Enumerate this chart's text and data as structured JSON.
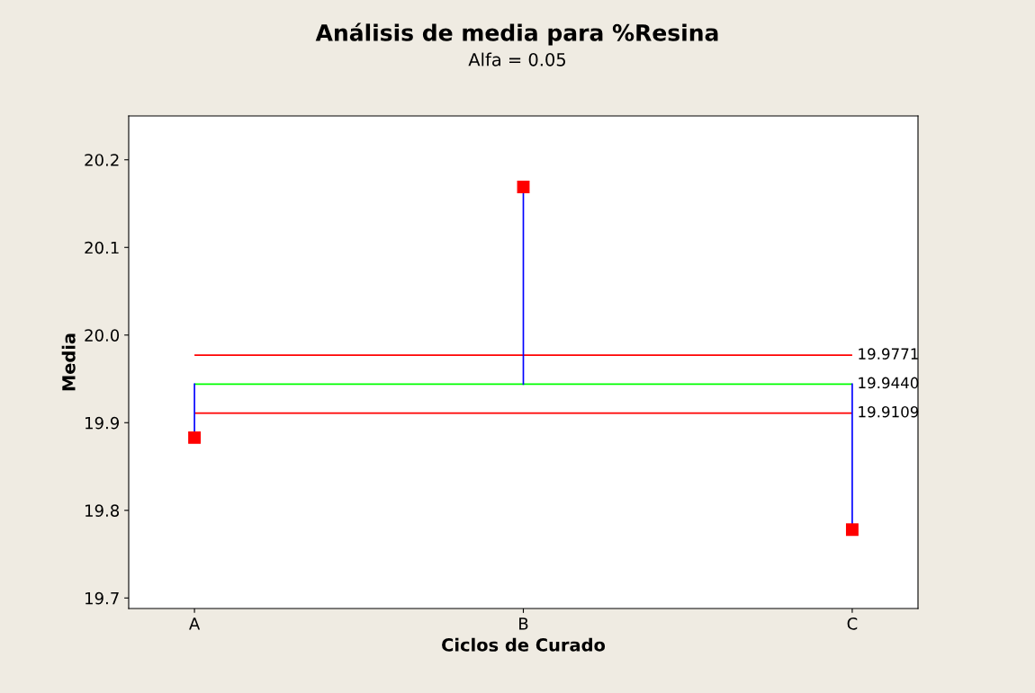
{
  "chart_data": {
    "type": "scatter",
    "title": "Análisis de media para %Resina",
    "subtitle": "Alfa = 0.05",
    "xlabel": "Ciclos de Curado",
    "ylabel": "Media",
    "categories": [
      "A",
      "B",
      "C"
    ],
    "series": [
      {
        "color": "#ff0000",
        "values": [
          19.883,
          20.169,
          19.778
        ],
        "marker": "square"
      },
      {
        "type": "line",
        "color": "#0000ff",
        "x": [
          "A",
          "A"
        ],
        "values": [
          19.944,
          19.883
        ]
      },
      {
        "type": "line",
        "color": "#0000ff",
        "x": [
          "B",
          "B"
        ],
        "values": [
          19.944,
          20.169
        ]
      },
      {
        "type": "line",
        "color": "#0000ff",
        "x": [
          "C",
          "C"
        ],
        "values": [
          19.944,
          19.778
        ]
      }
    ],
    "ylim": [
      19.688,
      20.25
    ],
    "yticks": [
      19.7,
      19.8,
      19.9,
      {
        "value": 20.0,
        "label": "20.0"
      },
      20.1,
      20.2
    ],
    "ref_lines": [
      {
        "axis": "y",
        "value": 19.9771,
        "label": "19.9771",
        "color": "#ff0000"
      },
      {
        "axis": "y",
        "value": 19.944,
        "label": "19.9440",
        "color": "#00ff00"
      },
      {
        "axis": "y",
        "value": 19.9109,
        "label": "19.9109",
        "color": "#ff0000"
      }
    ],
    "grid": false,
    "legend": false
  }
}
